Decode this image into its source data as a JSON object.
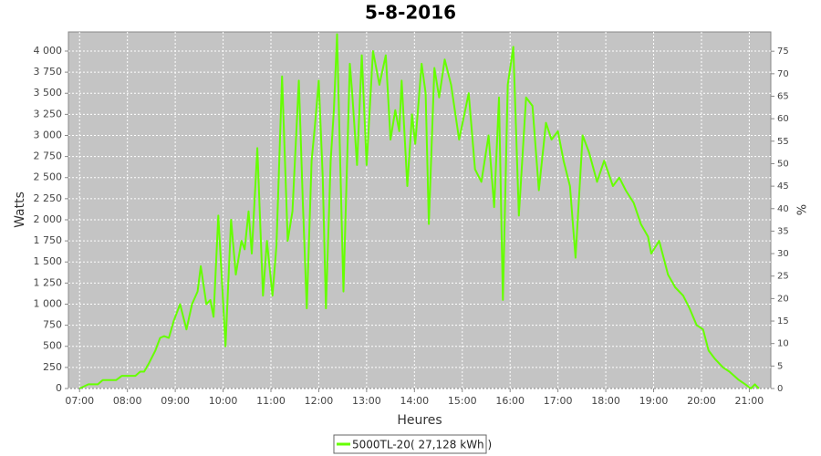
{
  "chart_data": {
    "type": "line",
    "title": "5-8-2016",
    "x_label": "Heures",
    "y_label": "Watts",
    "y2_label": "%",
    "x": [
      "07:00",
      "07:11",
      "07:23",
      "07:29",
      "07:46",
      "07:53",
      "08:10",
      "08:16",
      "08:21",
      "08:27",
      "08:35",
      "08:41",
      "08:46",
      "08:52",
      "08:58",
      "09:06",
      "09:14",
      "09:21",
      "09:28",
      "09:32",
      "09:39",
      "09:44",
      "09:48",
      "09:54",
      "09:59",
      "10:03",
      "10:10",
      "10:16",
      "10:23",
      "10:27",
      "10:32",
      "10:36",
      "10:43",
      "10:50",
      "10:55",
      "11:02",
      "11:07",
      "11:14",
      "11:21",
      "11:27",
      "11:35",
      "11:40",
      "11:45",
      "11:51",
      "11:55",
      "12:00",
      "12:05",
      "12:09",
      "12:15",
      "12:19",
      "12:23",
      "12:26",
      "12:31",
      "12:39",
      "12:42",
      "12:48",
      "12:54",
      "13:00",
      "13:08",
      "13:16",
      "13:24",
      "13:30",
      "13:36",
      "13:41",
      "13:44",
      "13:51",
      "13:57",
      "14:01",
      "14:09",
      "14:14",
      "14:18",
      "14:25",
      "14:31",
      "14:38",
      "14:46",
      "14:56",
      "15:08",
      "15:16",
      "15:24",
      "15:33",
      "15:40",
      "15:46",
      "15:51",
      "15:57",
      "16:04",
      "16:11",
      "16:20",
      "16:28",
      "16:36",
      "16:45",
      "16:52",
      "17:00",
      "17:07",
      "17:15",
      "17:22",
      "17:31",
      "17:39",
      "17:49",
      "17:58",
      "18:09",
      "18:17",
      "18:25",
      "18:35",
      "18:44",
      "18:53",
      "18:57",
      "19:07",
      "19:18",
      "19:27",
      "19:37",
      "19:45",
      "19:54",
      "20:02",
      "20:09",
      "20:17",
      "20:27",
      "20:35",
      "20:47",
      "20:55",
      "21:02",
      "21:07",
      "21:12"
    ],
    "series": [
      {
        "name": "5000TL-20( 27,128 kWh )",
        "color": "#66ff00",
        "values": [
          0,
          50,
          50,
          100,
          100,
          150,
          150,
          200,
          200,
          300,
          450,
          600,
          620,
          600,
          800,
          1000,
          700,
          1000,
          1150,
          1450,
          1000,
          1050,
          850,
          2050,
          1200,
          500,
          2000,
          1350,
          1750,
          1650,
          2100,
          1600,
          2850,
          1100,
          1750,
          1100,
          1700,
          3700,
          1750,
          2100,
          3650,
          2200,
          950,
          2700,
          3100,
          3650,
          2500,
          950,
          2700,
          3300,
          4200,
          3000,
          1150,
          3850,
          3500,
          2650,
          3950,
          2650,
          4000,
          3600,
          3950,
          2950,
          3300,
          3050,
          3650,
          2400,
          3250,
          2900,
          3850,
          3500,
          1950,
          3800,
          3450,
          3900,
          3600,
          2950,
          3500,
          2600,
          2450,
          3000,
          2150,
          3450,
          1050,
          3600,
          4050,
          2050,
          3450,
          3350,
          2350,
          3150,
          2950,
          3050,
          2700,
          2400,
          1550,
          3000,
          2800,
          2450,
          2700,
          2400,
          2500,
          2350,
          2200,
          1950,
          1800,
          1600,
          1750,
          1350,
          1200,
          1100,
          950,
          750,
          700,
          450,
          350,
          250,
          200,
          100,
          50,
          0,
          50,
          0
        ]
      }
    ],
    "xlim": [
      "06:46",
      "21:27"
    ],
    "xticks": [
      "07:00",
      "08:00",
      "09:00",
      "10:00",
      "11:00",
      "12:00",
      "13:00",
      "14:00",
      "15:00",
      "16:00",
      "17:00",
      "18:00",
      "19:00",
      "20:00",
      "21:00"
    ],
    "ylim": [
      0,
      4227
    ],
    "yticks": [
      0,
      250,
      500,
      750,
      {
        "value": 1000,
        "label": "1 000"
      },
      {
        "value": 1250,
        "label": "1 250"
      },
      {
        "value": 1500,
        "label": "1 500"
      },
      {
        "value": 1750,
        "label": "1 750"
      },
      {
        "value": 2000,
        "label": "2 000"
      },
      {
        "value": 2250,
        "label": "2 250"
      },
      {
        "value": 2500,
        "label": "2 500"
      },
      {
        "value": 2750,
        "label": "2 750"
      },
      {
        "value": 3000,
        "label": "3 000"
      },
      {
        "value": 3250,
        "label": "3 250"
      },
      {
        "value": 3500,
        "label": "3 500"
      },
      {
        "value": 3750,
        "label": "3 750"
      },
      {
        "value": 4000,
        "label": "4 000"
      }
    ],
    "y2lim": [
      0,
      79.3
    ],
    "y2ticks": [
      0,
      5,
      10,
      15,
      20,
      25,
      30,
      35,
      40,
      45,
      50,
      55,
      60,
      65,
      70,
      75
    ],
    "grid": true,
    "legend": "bottom"
  }
}
